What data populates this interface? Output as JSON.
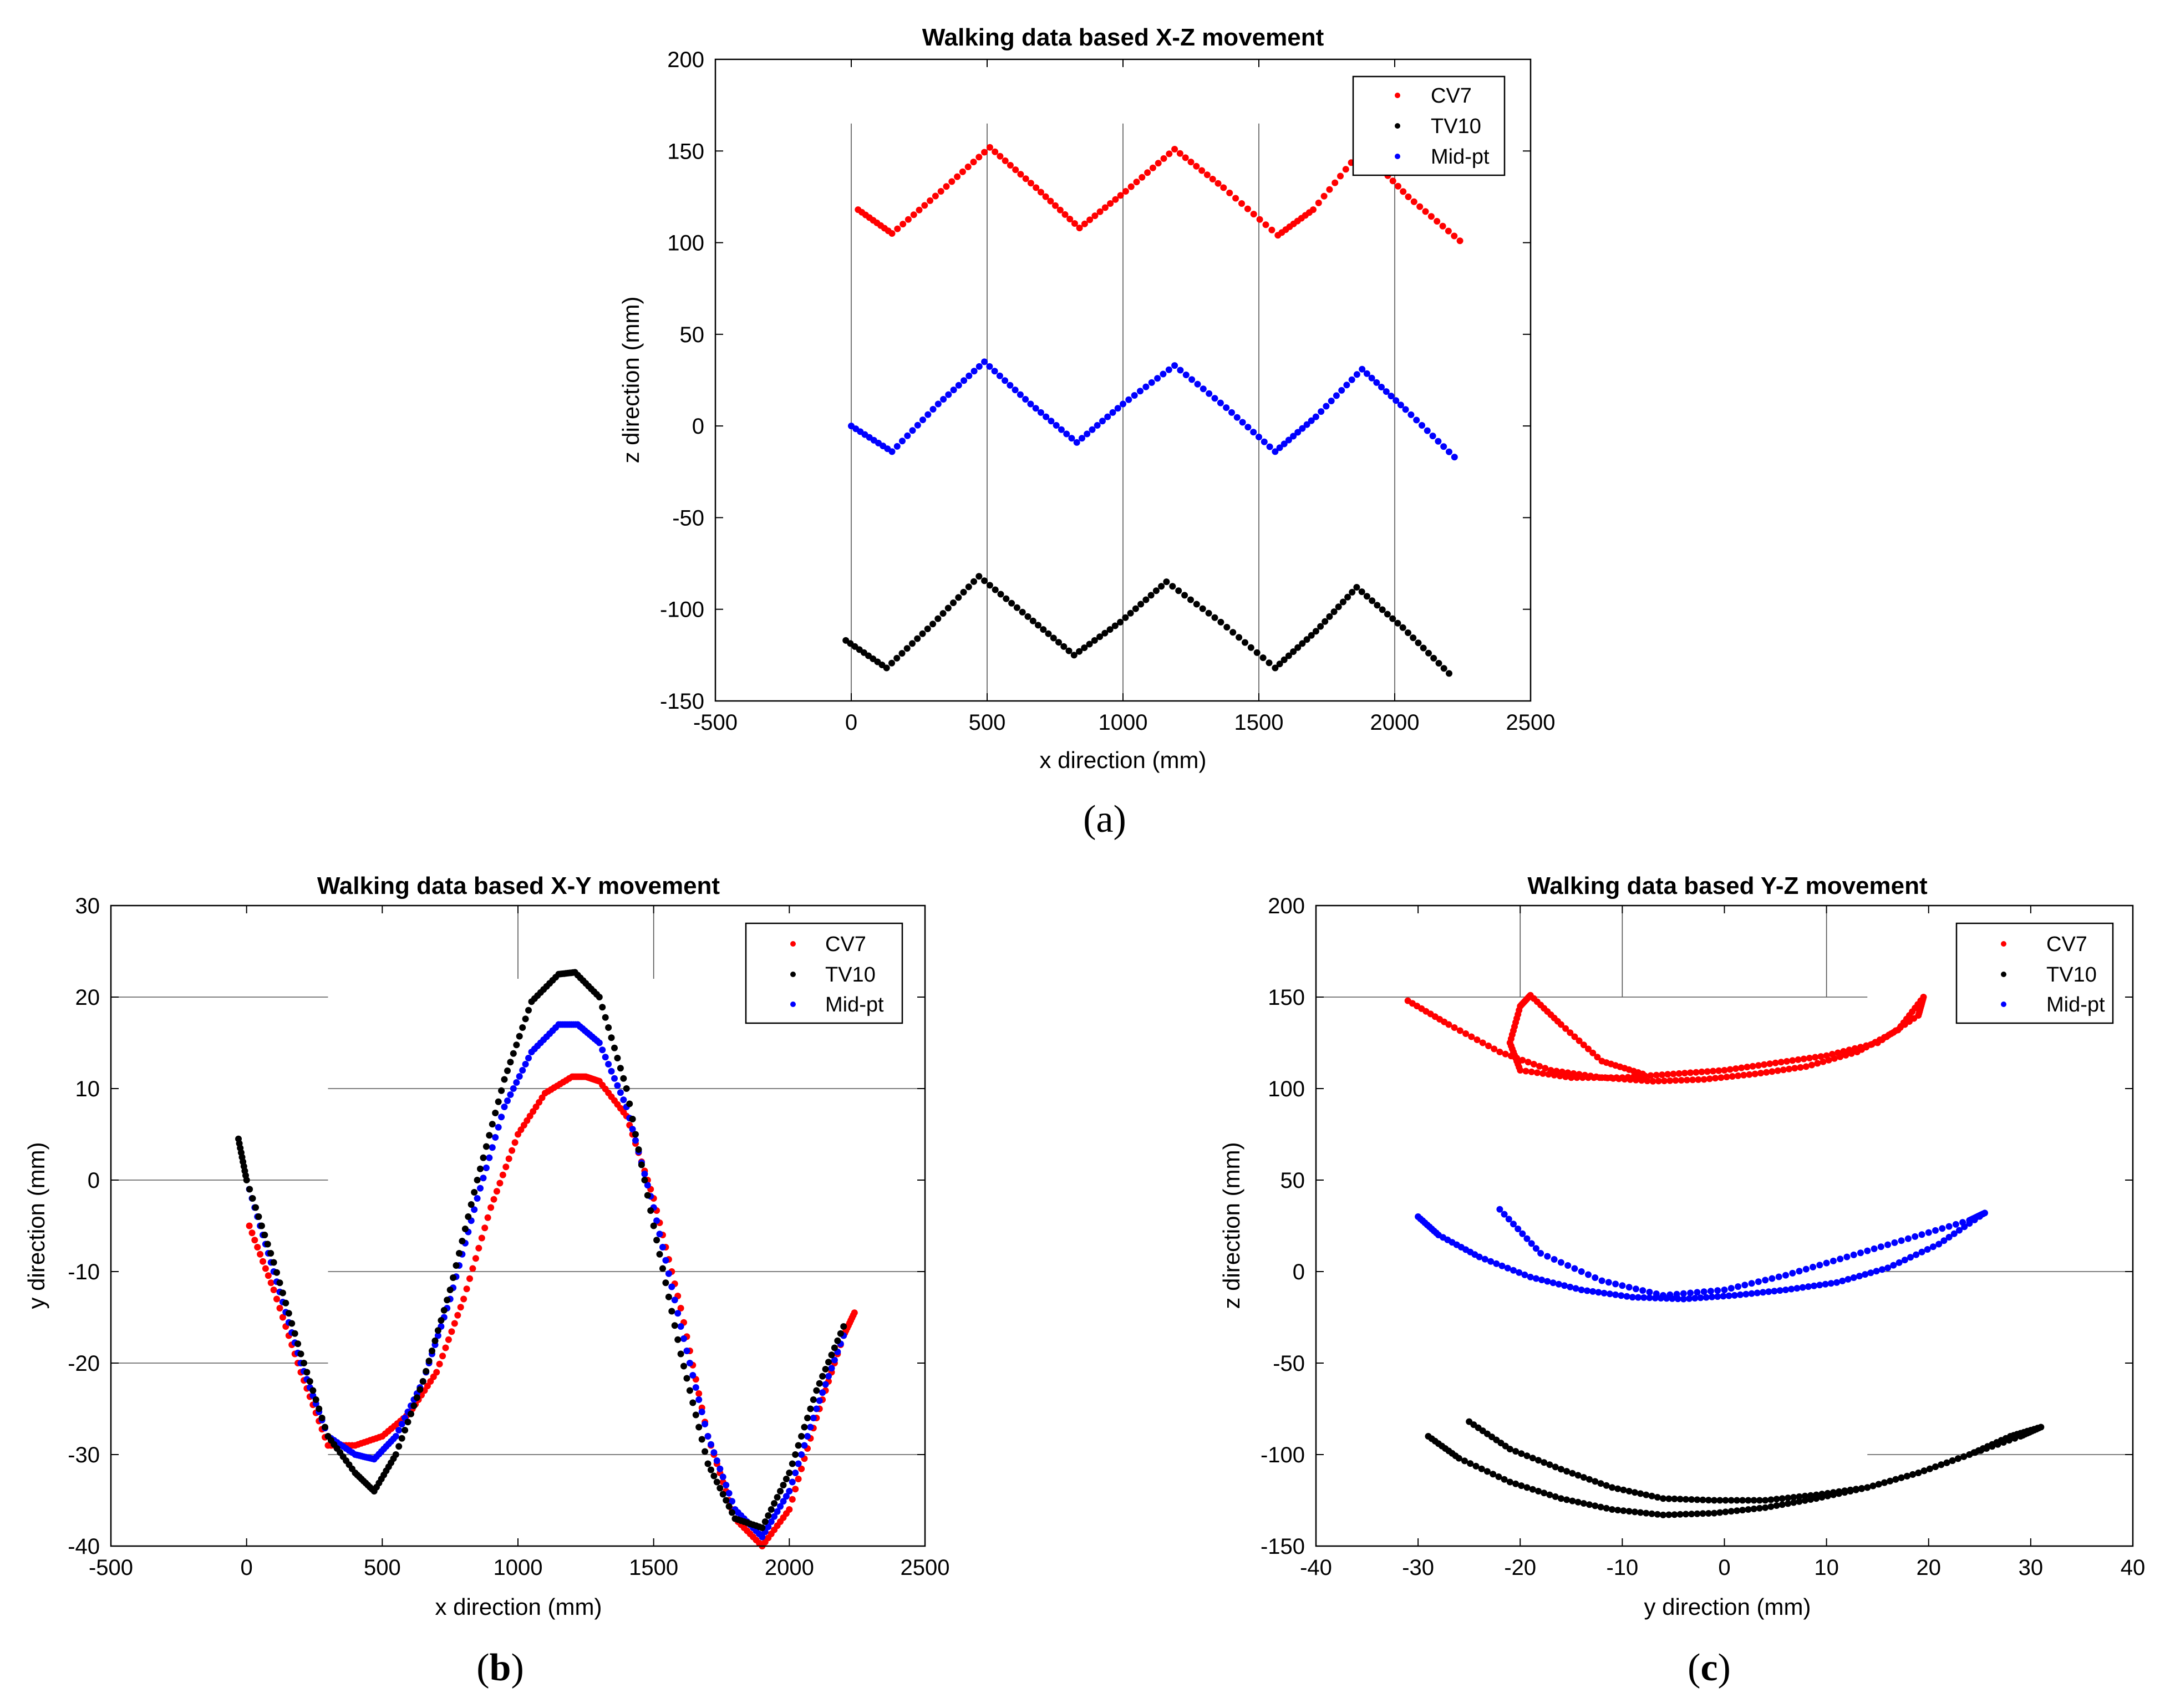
{
  "figure_captions": [
    {
      "open": "(",
      "letter": "a",
      "close": ")"
    },
    {
      "open": "(",
      "letter": "b",
      "close": ")"
    },
    {
      "open": "(",
      "letter": "c",
      "close": ")"
    }
  ],
  "colors": {
    "CV7": "#ff0000",
    "TV10": "#000000",
    "Mid-pt": "#0000ff"
  },
  "chart_data": [
    {
      "type": "scatter",
      "title": "Walking data based X-Z movement",
      "xlabel": "x direction (mm)",
      "ylabel": "z direction (mm)",
      "xlim": [
        -500,
        2500
      ],
      "ylim": [
        -150,
        200
      ],
      "xticks": [
        -500,
        0,
        500,
        1000,
        1500,
        2000,
        2500
      ],
      "yticks": [
        -150,
        -100,
        -50,
        0,
        50,
        100,
        150,
        200
      ],
      "legend": {
        "position": "top-right",
        "entries": [
          "CV7",
          "TV10",
          "Mid-pt"
        ]
      },
      "reference_lines": {
        "vertical_x": [
          0,
          500,
          1000,
          1500,
          2000
        ],
        "y_range": [
          -150,
          165
        ]
      },
      "series": [
        {
          "name": "CV7",
          "color": "#ff0000",
          "x": [
            25,
            150,
            330,
            510,
            680,
            840,
            1010,
            1190,
            1370,
            1570,
            1700,
            1880,
            2050,
            2240
          ],
          "y": [
            118,
            105,
            128,
            152,
            130,
            108,
            128,
            151,
            130,
            104,
            118,
            151,
            125,
            101
          ]
        },
        {
          "name": "Mid-pt",
          "color": "#0000ff",
          "x": [
            0,
            150,
            320,
            490,
            660,
            830,
            1000,
            1190,
            1380,
            1560,
            1710,
            1880,
            2040,
            2220
          ],
          "y": [
            0,
            -14,
            12,
            35,
            12,
            -9,
            12,
            33,
            10,
            -14,
            5,
            31,
            9,
            -17
          ]
        },
        {
          "name": "TV10",
          "color": "#000000",
          "x": [
            -20,
            130,
            300,
            470,
            650,
            820,
            990,
            1160,
            1360,
            1560,
            1710,
            1860,
            2030,
            2200
          ],
          "y": [
            -117,
            -132,
            -108,
            -82,
            -104,
            -125,
            -107,
            -85,
            -107,
            -132,
            -112,
            -88,
            -110,
            -135
          ]
        }
      ]
    },
    {
      "type": "scatter",
      "title": "Walking data based X-Y movement",
      "xlabel": "x direction (mm)",
      "ylabel": "y direction (mm)",
      "xlim": [
        -500,
        2500
      ],
      "ylim": [
        -40,
        30
      ],
      "xticks": [
        -500,
        0,
        500,
        1000,
        1500,
        2000,
        2500
      ],
      "yticks": [
        -40,
        -30,
        -20,
        -10,
        0,
        10,
        20,
        30
      ],
      "legend": {
        "position": "top-right",
        "entries": [
          "CV7",
          "TV10",
          "Mid-pt"
        ]
      },
      "reference_segments": [
        {
          "x": [
            -500,
            300
          ],
          "y": 20
        },
        {
          "x": [
            300,
            2500
          ],
          "y": 10
        },
        {
          "x": [
            -500,
            300
          ],
          "y": 0
        },
        {
          "x": [
            300,
            2500
          ],
          "y": -10
        },
        {
          "x": [
            -500,
            300
          ],
          "y": -20
        },
        {
          "x": [
            300,
            2500
          ],
          "y": -30
        },
        {
          "vx": 1000,
          "y": [
            22,
            30
          ]
        },
        {
          "vx": 1500,
          "y": [
            22,
            30
          ]
        }
      ],
      "series": [
        {
          "name": "CV7",
          "color": "#ff0000",
          "x": [
            10,
            100,
            200,
            300,
            400,
            500,
            600,
            700,
            800,
            900,
            1000,
            1100,
            1200,
            1250,
            1300,
            1400,
            1500,
            1600,
            1700,
            1800,
            1900,
            2000,
            2100,
            2200,
            2240
          ],
          "y": [
            -5,
            -12,
            -21,
            -29,
            -29,
            -28,
            -25.5,
            -21,
            -13,
            -3,
            5,
            9.5,
            11.3,
            11.3,
            10.8,
            7,
            -2,
            -14,
            -28,
            -37,
            -40,
            -36,
            -26,
            -17,
            -14.5
          ]
        },
        {
          "name": "Mid-pt",
          "color": "#0000ff",
          "x": [
            10,
            100,
            200,
            300,
            400,
            470,
            550,
            650,
            750,
            850,
            950,
            1050,
            1150,
            1220,
            1300,
            1400,
            1500,
            1600,
            1700,
            1800,
            1900,
            2000,
            2100,
            2200
          ],
          "y": [
            -1,
            -10,
            -20,
            -28,
            -30,
            -30.5,
            -28,
            -22,
            -13,
            -2,
            8,
            14,
            17,
            17,
            15,
            8,
            -3,
            -16,
            -28,
            -36,
            -39,
            -34,
            -25,
            -17
          ]
        },
        {
          "name": "TV10",
          "color": "#000000",
          "x": [
            -30,
            0,
            100,
            200,
            300,
            400,
            470,
            550,
            650,
            750,
            850,
            950,
            1050,
            1150,
            1210,
            1300,
            1400,
            1500,
            1600,
            1700,
            1800,
            1900,
            2000,
            2100,
            2200
          ],
          "y": [
            4.5,
            0,
            -9,
            -19,
            -28,
            -32,
            -34,
            -30,
            -22,
            -12,
            0,
            11,
            19.5,
            22.5,
            22.7,
            20,
            10,
            -5,
            -19,
            -31,
            -37,
            -38,
            -32,
            -23,
            -16
          ]
        }
      ]
    },
    {
      "type": "scatter",
      "title": "Walking data based Y-Z movement",
      "xlabel": "y direction (mm)",
      "ylabel": "z direction (mm)",
      "xlim": [
        -40,
        40
      ],
      "ylim": [
        -150,
        200
      ],
      "xticks": [
        -40,
        -30,
        -20,
        -10,
        0,
        10,
        20,
        30,
        40
      ],
      "yticks": [
        -150,
        -100,
        -50,
        0,
        50,
        100,
        150,
        200
      ],
      "legend": {
        "position": "top-right",
        "entries": [
          "CV7",
          "TV10",
          "Mid-pt"
        ]
      },
      "reference_segments": [
        {
          "x": [
            -40,
            14
          ],
          "y": 150
        },
        {
          "x": [
            14,
            40
          ],
          "y": 0
        },
        {
          "x": [
            14,
            40
          ],
          "y": -100
        },
        {
          "vx": -20,
          "y": [
            150,
            200
          ]
        },
        {
          "vx": -10,
          "y": [
            150,
            200
          ]
        },
        {
          "vx": 10,
          "y": [
            150,
            200
          ]
        }
      ],
      "series": [
        {
          "name": "CV7",
          "color": "#ff0000",
          "x": [
            -31,
            -27,
            -22,
            -17,
            -12,
            -7,
            -2,
            3,
            8,
            13,
            17,
            19.5,
            19,
            15,
            10,
            5,
            0,
            -5,
            -10,
            -15,
            -20,
            -21,
            -20,
            -19,
            -16,
            -12,
            -8
          ],
          "y": [
            148,
            135,
            120,
            110,
            106,
            104,
            105,
            108,
            112,
            120,
            132,
            150,
            140,
            125,
            118,
            114,
            110,
            108,
            106,
            106,
            110,
            125,
            145,
            151,
            135,
            115,
            108
          ]
        },
        {
          "name": "Mid-pt",
          "color": "#0000ff",
          "x": [
            -30,
            -28,
            -24,
            -19,
            -14,
            -9,
            -4,
            1,
            6,
            11,
            16,
            21,
            25.5,
            24,
            18,
            12,
            6,
            0,
            -6,
            -12,
            -18,
            -22
          ],
          "y": [
            30,
            20,
            8,
            -3,
            -10,
            -14,
            -15,
            -13,
            -10,
            -6,
            2,
            15,
            32,
            28,
            18,
            8,
            -2,
            -10,
            -13,
            -5,
            10,
            34
          ]
        },
        {
          "name": "TV10",
          "color": "#000000",
          "x": [
            -29,
            -26,
            -21,
            -16,
            -11,
            -6,
            -1,
            4,
            9,
            14,
            19,
            24,
            28,
            31,
            29,
            24,
            19,
            14,
            9,
            4,
            -1,
            -6,
            -11,
            -16,
            -21,
            -25
          ],
          "y": [
            -90,
            -102,
            -115,
            -124,
            -130,
            -133,
            -132,
            -129,
            -124,
            -118,
            -110,
            -100,
            -90,
            -85,
            -90,
            -100,
            -110,
            -118,
            -122,
            -125,
            -125,
            -124,
            -118,
            -108,
            -97,
            -82
          ]
        }
      ]
    }
  ]
}
